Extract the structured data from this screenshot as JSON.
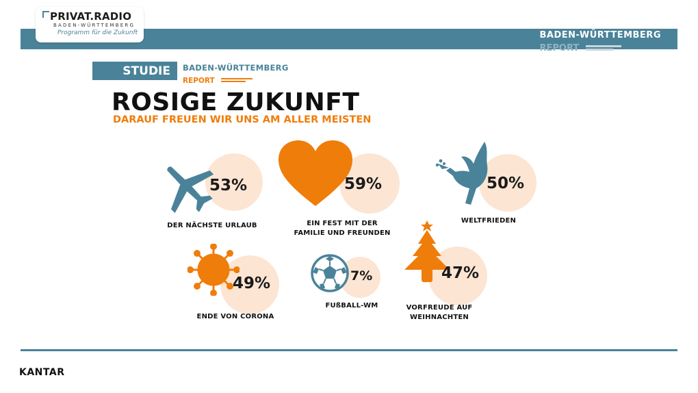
{
  "header": {
    "logo_main": "PRIVAT.RADIO",
    "logo_sub": "BADEN-WÜRTTEMBERG",
    "logo_tagline": "Programm für die Zukunft",
    "report_line1": "BADEN-WÜRTTEMBERG",
    "report_line2": "REPORT"
  },
  "badge": {
    "label": "STUDIE",
    "report_line1": "BADEN-WÜRTTEMBERG",
    "report_line2": "REPORT"
  },
  "title": "ROSIGE ZUKUNFT",
  "subtitle": "DARAUF FREUEN WIR UNS AM ALLER MEISTEN",
  "chart_data": {
    "type": "pictogram-bubbles",
    "unit": "%",
    "categories": [
      "DER NÄCHSTE URLAUB",
      "EIN FEST MIT DER FAMILIE UND FREUNDEN",
      "WELTFRIEDEN",
      "ENDE VON CORONA",
      "FUßBALL-WM",
      "VORFREUDE AUF WEIHNACHTEN"
    ],
    "values": [
      53,
      59,
      50,
      49,
      7,
      47
    ],
    "labels": [
      "53%",
      "59%",
      "50%",
      "49%",
      "7%",
      "47%"
    ],
    "icons": [
      "airplane-icon",
      "heart-icon",
      "dove-icon",
      "virus-icon",
      "football-icon",
      "christmas-tree-icon"
    ],
    "colors": {
      "bubble": "#fde5d3",
      "orange": "#ef7d0a",
      "teal": "#4a8399"
    }
  },
  "captions": {
    "c0": "DER NÄCHSTE URLAUB",
    "c1a": "EIN FEST MIT DER",
    "c1b": "FAMILIE UND FREUNDEN",
    "c2": "WELTFRIEDEN",
    "c3": "ENDE VON CORONA",
    "c4": "FUßBALL-WM",
    "c5a": "VORFREUDE AUF",
    "c5b": "WEIHNACHTEN"
  },
  "footer": {
    "brand": "KANTAR"
  }
}
